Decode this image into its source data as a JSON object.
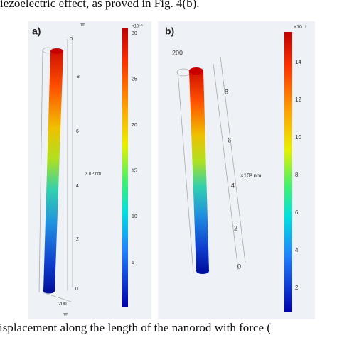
{
  "header": {
    "text": "iezoelectric effect, as proved in Fig. 4(b)."
  },
  "panels": [
    {
      "label": "a)",
      "colorbar_unit": "×10⁻⁶",
      "colorbar_ticks": [
        "30",
        "25",
        "20",
        "15",
        "10",
        "5"
      ],
      "axis_unit_top": "nm",
      "axis_ticks": [
        "0",
        "8",
        "6",
        "4",
        "2",
        "0"
      ],
      "axis_scale": "×10³ nm",
      "base_tick": "200",
      "base_unit": "nm"
    },
    {
      "label": "b)",
      "colorbar_unit": "×10⁻⁹",
      "colorbar_ticks": [
        "14",
        "12",
        "10",
        "8",
        "6",
        "4",
        "2"
      ],
      "axis_ticks": [
        "8",
        "6",
        "4",
        "2",
        "0"
      ],
      "axis_scale": "×10³ nm",
      "base_tick": "200"
    }
  ],
  "caption": {
    "text": "isplacement along the length of the nanorod with force ("
  }
}
